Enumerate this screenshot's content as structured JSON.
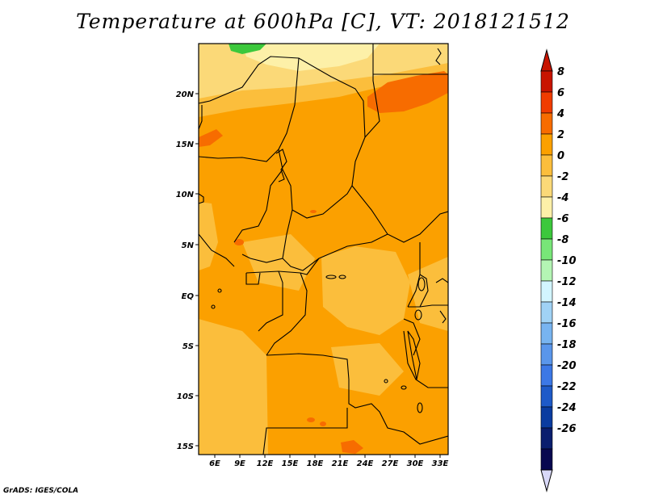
{
  "title": "Temperature at 600hPa [C], VT: 2018121512",
  "footer": "GrADS: IGES/COLA",
  "map": {
    "lat_labels": [
      "20N",
      "15N",
      "10N",
      "5N",
      "EQ",
      "5S",
      "10S",
      "15S"
    ],
    "lon_labels": [
      "6E",
      "9E",
      "12E",
      "15E",
      "18E",
      "21E",
      "24E",
      "27E",
      "30E",
      "33E"
    ],
    "region": "Central Africa",
    "extent": {
      "lon": [
        3,
        34
      ],
      "lat": [
        -16,
        25
      ]
    },
    "dominant_range": "0 to 4 C",
    "colors": {
      "c_2_to_4": "#fba000",
      "c_0_to_2": "#fbbe3c",
      "c_m2_to_0": "#fbd978",
      "c_m4_to_m2": "#fdf0a8",
      "c_4_to_6": "#f76c00",
      "c_m6_to_m4": "#3cc83c",
      "border": "#000000"
    }
  },
  "colorbar": {
    "labels": [
      "8",
      "6",
      "4",
      "2",
      "0",
      "-2",
      "-4",
      "-6",
      "-8",
      "-10",
      "-12",
      "-14",
      "-16",
      "-18",
      "-20",
      "-22",
      "-24",
      "-26"
    ],
    "colors": [
      "#c81400",
      "#f03c00",
      "#f76c00",
      "#fba000",
      "#fbbe3c",
      "#fbd978",
      "#fdf0a8",
      "#3cc83c",
      "#78e678",
      "#b4f5b4",
      "#d2f5ff",
      "#a0d2f5",
      "#78b4f0",
      "#5a96eb",
      "#3c78e6",
      "#1e5ac8",
      "#0a3ca0",
      "#0a1e6e",
      "#080850"
    ],
    "over_color": "#c81400",
    "under_color": "#d8d8f8"
  }
}
